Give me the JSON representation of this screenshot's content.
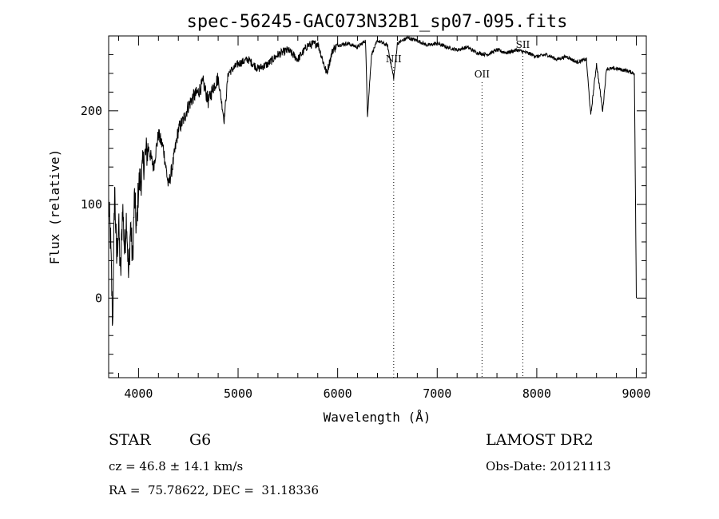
{
  "chart_data": {
    "type": "line",
    "title": "spec-56245-GAC073N32B1_sp07-095.fits",
    "xlabel": "Wavelength (Å)",
    "ylabel": "Flux (relative)",
    "xlim": [
      3700,
      9100
    ],
    "ylim": [
      -85,
      280
    ],
    "x_ticks": [
      4000,
      5000,
      6000,
      7000,
      8000,
      9000
    ],
    "y_ticks": [
      0,
      100,
      200
    ],
    "grid": false,
    "series": [
      {
        "x": [
          3700,
          3720,
          3740,
          3760,
          3780,
          3800,
          3820,
          3840,
          3860,
          3880,
          3900,
          3920,
          3940,
          3960,
          3980,
          4000,
          4030,
          4060,
          4100,
          4150,
          4200,
          4250,
          4300,
          4340,
          4400,
          4450,
          4500,
          4550,
          4600,
          4650,
          4700,
          4750,
          4800,
          4860,
          4900,
          4950,
          5000,
          5100,
          5200,
          5300,
          5400,
          5500,
          5600,
          5700,
          5800,
          5890,
          5950,
          6000,
          6100,
          6200,
          6280,
          6300,
          6340,
          6400,
          6500,
          6563,
          6600,
          6700,
          6800,
          6900,
          7000,
          7100,
          7200,
          7300,
          7400,
          7500,
          7600,
          7700,
          7800,
          7900,
          8000,
          8100,
          8200,
          8300,
          8400,
          8498,
          8542,
          8600,
          8662,
          8700,
          8800,
          8900,
          8980,
          9000
        ],
        "y": [
          100,
          60,
          -30,
          120,
          40,
          80,
          20,
          100,
          50,
          90,
          20,
          80,
          40,
          110,
          70,
          120,
          130,
          150,
          160,
          140,
          175,
          160,
          120,
          140,
          180,
          190,
          205,
          215,
          220,
          230,
          210,
          225,
          235,
          190,
          240,
          245,
          250,
          255,
          245,
          250,
          260,
          265,
          255,
          270,
          272,
          240,
          265,
          270,
          272,
          268,
          275,
          195,
          260,
          275,
          270,
          235,
          272,
          278,
          275,
          270,
          272,
          268,
          265,
          268,
          262,
          260,
          265,
          262,
          265,
          262,
          258,
          260,
          255,
          258,
          252,
          255,
          195,
          250,
          200,
          245,
          245,
          243,
          240,
          0
        ]
      }
    ],
    "line_markers": [
      {
        "label": "NII",
        "x": 6563
      },
      {
        "label": "OII",
        "x": 7450
      },
      {
        "label": "SII",
        "x": 7860
      }
    ]
  },
  "info": {
    "object_class": "STAR",
    "subclass": "G6",
    "survey": "LAMOST DR2",
    "redshift": "cz = 46.8 ± 14.1 km/s",
    "obs_date": "Obs-Date: 20121113",
    "coords": "RA =  75.78622, DEC =  31.18336"
  }
}
